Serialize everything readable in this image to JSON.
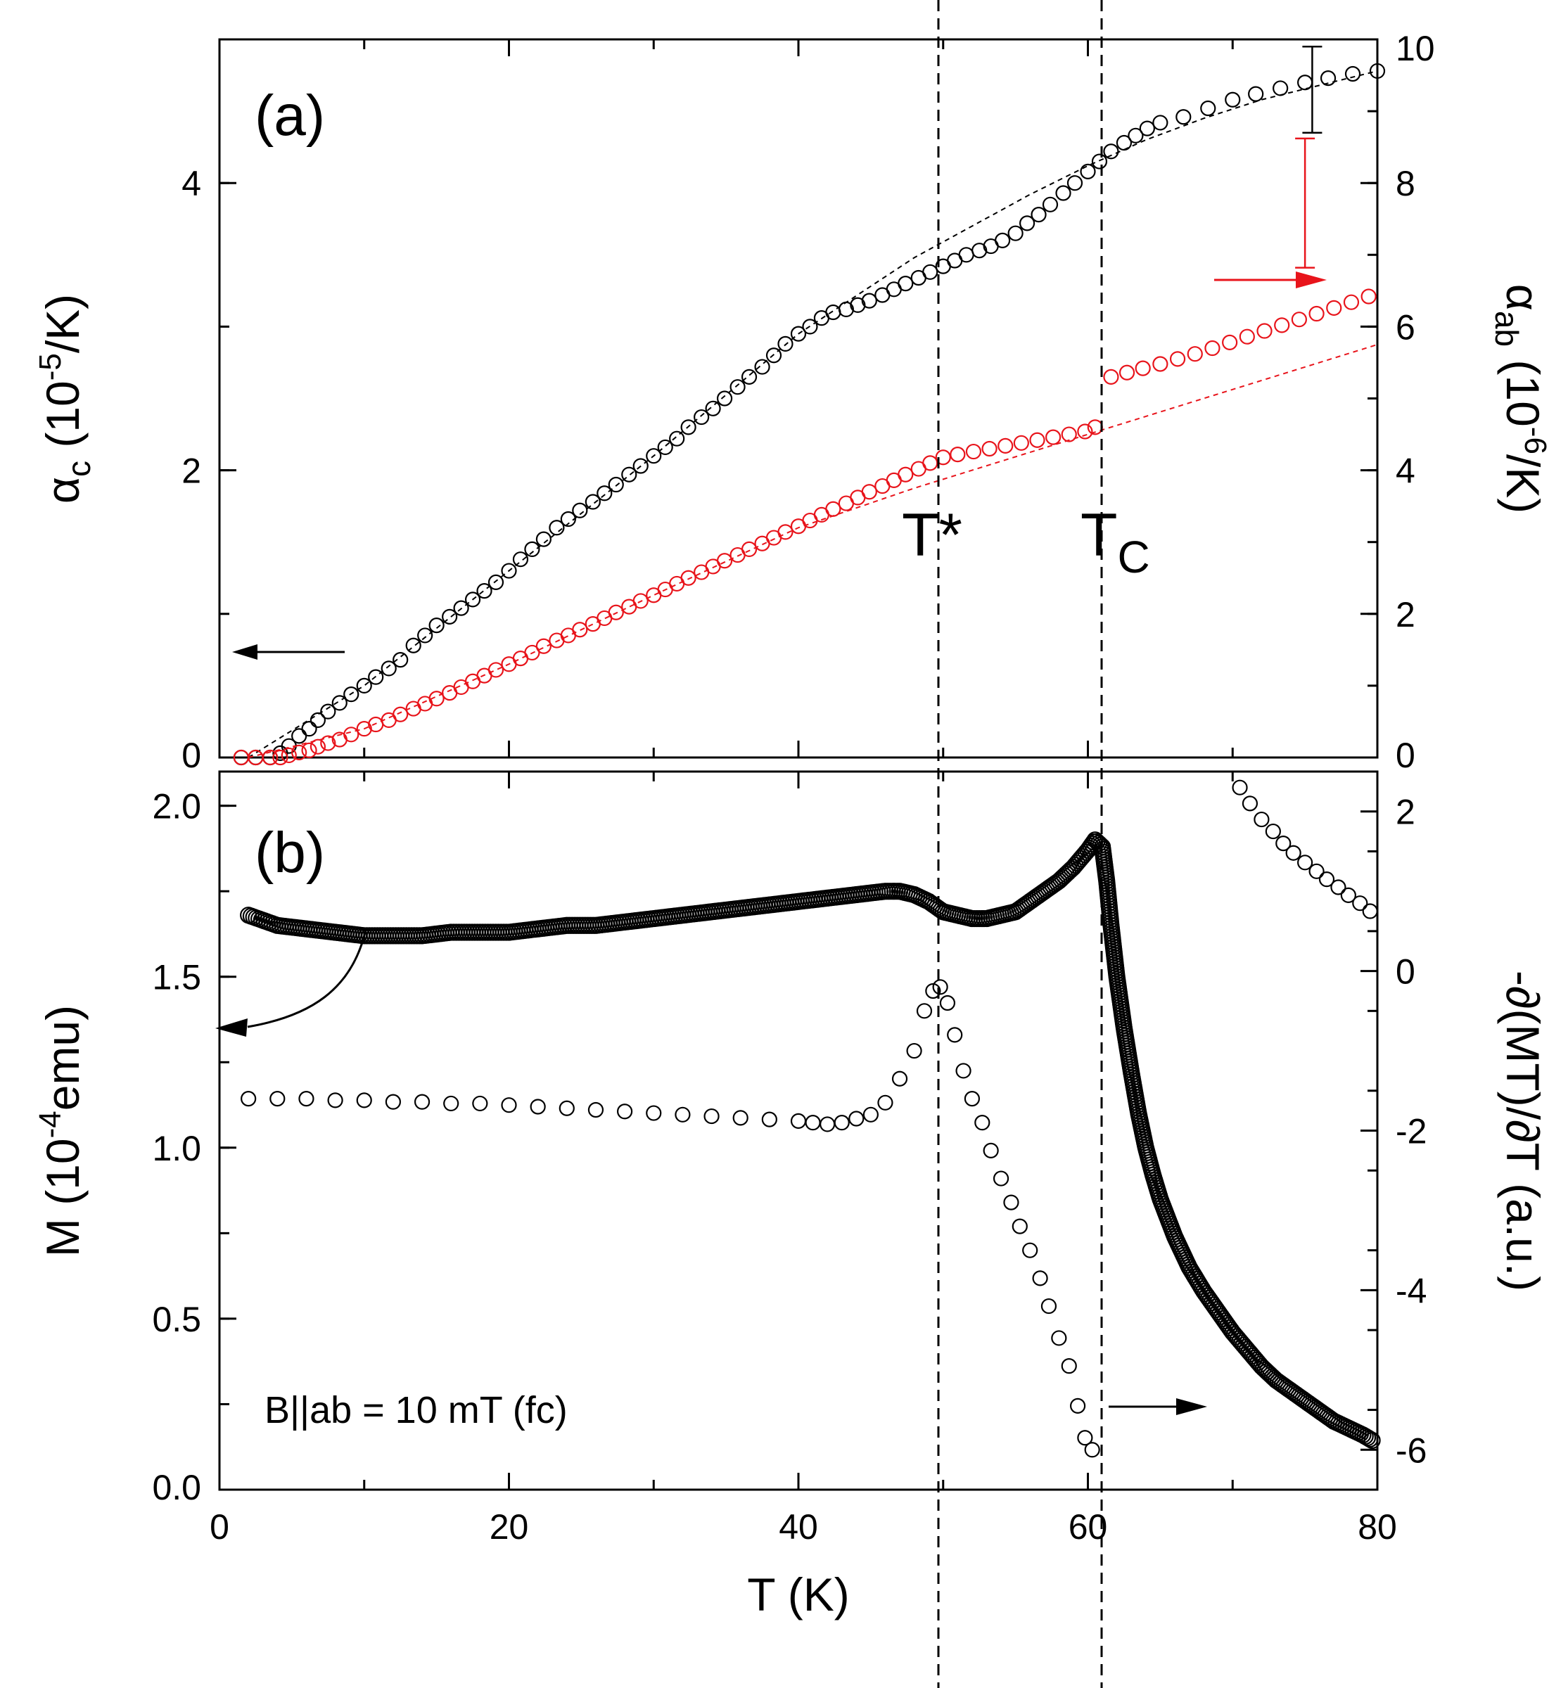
{
  "colors": {
    "black": "#000000",
    "red": "#e8141b"
  },
  "chart_data": [
    {
      "id": "panel-a",
      "type": "scatter",
      "panel_label": "(a)",
      "xlim": [
        0,
        80
      ],
      "ylim_left": [
        0,
        5
      ],
      "ylim_right": [
        0,
        10
      ],
      "ylabel_left": {
        "main": "α",
        "sub": "c",
        "rest": " (10",
        "sup": "-5",
        "end": "/K)"
      },
      "ylabel_right": {
        "main": "α",
        "sub": "ab",
        "rest": " (10",
        "sup": "-6",
        "end": "/K)"
      },
      "left_ticks": [
        "0",
        "2",
        "4"
      ],
      "left_tick_values": [
        0,
        2,
        4
      ],
      "right_ticks": [
        "0",
        "2",
        "4",
        "6",
        "8",
        "10"
      ],
      "right_tick_values": [
        0,
        2,
        4,
        6,
        8,
        10
      ],
      "annotations": {
        "tstar": "T*",
        "tc_main": "T",
        "tc_sub": "C"
      },
      "series": [
        {
          "name": "alpha_c",
          "axis": "left",
          "color": "#000000",
          "x": [
            1.5,
            2.5,
            3.5,
            4.2,
            4.8,
            5.5,
            6.2,
            6.8,
            7.5,
            8.3,
            9.1,
            10,
            10.8,
            11.7,
            12.5,
            13.4,
            14.2,
            15,
            15.9,
            16.7,
            17.5,
            18.3,
            19.1,
            20,
            20.8,
            21.6,
            22.4,
            23.3,
            24.1,
            24.9,
            25.8,
            26.6,
            27.4,
            28.3,
            29.1,
            30,
            30.8,
            31.6,
            32.4,
            33.3,
            34.1,
            34.9,
            35.8,
            36.6,
            37.5,
            38.3,
            39.1,
            40,
            40.8,
            41.6,
            42.4,
            43.3,
            44.1,
            44.9,
            45.8,
            46.6,
            47.4,
            48.3,
            49.1,
            50,
            50.8,
            51.6,
            52.5,
            53.3,
            54.1,
            55,
            55.8,
            56.6,
            57.4,
            58.3,
            59.1,
            60,
            60.8,
            61.6,
            62.5,
            63.3,
            64.1,
            65,
            66.6,
            68.3,
            70,
            71.6,
            73.3,
            75,
            76.6,
            78.3,
            80
          ],
          "y": [
            0,
            0,
            0,
            0.03,
            0.08,
            0.15,
            0.2,
            0.26,
            0.32,
            0.38,
            0.44,
            0.5,
            0.56,
            0.62,
            0.68,
            0.78,
            0.85,
            0.92,
            0.98,
            1.04,
            1.1,
            1.16,
            1.22,
            1.3,
            1.38,
            1.45,
            1.52,
            1.6,
            1.66,
            1.72,
            1.78,
            1.84,
            1.9,
            1.97,
            2.03,
            2.1,
            2.16,
            2.22,
            2.3,
            2.37,
            2.43,
            2.5,
            2.58,
            2.65,
            2.72,
            2.8,
            2.88,
            2.95,
            3.0,
            3.06,
            3.1,
            3.12,
            3.15,
            3.18,
            3.22,
            3.26,
            3.3,
            3.34,
            3.38,
            3.42,
            3.46,
            3.5,
            3.53,
            3.56,
            3.6,
            3.65,
            3.72,
            3.78,
            3.85,
            3.93,
            4.0,
            4.08,
            4.15,
            4.22,
            4.28,
            4.33,
            4.38,
            4.42,
            4.46,
            4.52,
            4.58,
            4.62,
            4.66,
            4.7,
            4.73,
            4.76,
            4.78
          ],
          "trend_x": [
            2,
            10,
            20,
            30,
            40,
            48,
            52,
            56,
            60,
            64,
            68,
            72,
            76,
            80
          ],
          "trend_y": [
            0,
            0.5,
            1.3,
            2.1,
            2.95,
            3.48,
            3.7,
            3.92,
            4.12,
            4.3,
            4.45,
            4.58,
            4.68,
            4.78
          ],
          "error_bar": {
            "x": 75.5,
            "y": 4.65,
            "err": 0.3
          }
        },
        {
          "name": "alpha_ab",
          "axis": "right",
          "color": "#e8141b",
          "x": [
            1.5,
            2.5,
            3.5,
            4.2,
            4.8,
            5.5,
            6.2,
            6.8,
            7.5,
            8.3,
            9.1,
            10,
            10.8,
            11.7,
            12.5,
            13.4,
            14.2,
            15,
            15.9,
            16.7,
            17.5,
            18.3,
            19.1,
            20,
            20.8,
            21.6,
            22.4,
            23.3,
            24.1,
            24.9,
            25.8,
            26.6,
            27.4,
            28.3,
            29.1,
            30,
            30.8,
            31.6,
            32.4,
            33.3,
            34.1,
            34.9,
            35.8,
            36.6,
            37.5,
            38.3,
            39.1,
            40,
            40.8,
            41.6,
            42.4,
            43.3,
            44.1,
            44.9,
            45.8,
            46.6,
            47.4,
            48.3,
            49.1,
            50,
            51,
            52.1,
            53.2,
            54.3,
            55.4,
            56.5,
            57.6,
            58.7,
            59.8,
            60.5,
            61.6,
            62.7,
            63.8,
            65,
            66.2,
            67.4,
            68.6,
            69.8,
            71,
            72.2,
            73.4,
            74.6,
            75.8,
            77,
            78.2,
            79.4
          ],
          "y": [
            0,
            0,
            0,
            0,
            0.03,
            0.07,
            0.1,
            0.15,
            0.2,
            0.25,
            0.32,
            0.4,
            0.46,
            0.52,
            0.6,
            0.68,
            0.75,
            0.82,
            0.9,
            0.98,
            1.06,
            1.14,
            1.22,
            1.3,
            1.38,
            1.46,
            1.55,
            1.63,
            1.7,
            1.78,
            1.86,
            1.94,
            2.02,
            2.1,
            2.18,
            2.26,
            2.34,
            2.42,
            2.5,
            2.58,
            2.66,
            2.74,
            2.82,
            2.9,
            2.98,
            3.06,
            3.14,
            3.22,
            3.3,
            3.38,
            3.46,
            3.54,
            3.62,
            3.7,
            3.78,
            3.86,
            3.94,
            4.02,
            4.1,
            4.18,
            4.22,
            4.26,
            4.3,
            4.34,
            4.38,
            4.42,
            4.46,
            4.5,
            4.54,
            4.6,
            5.3,
            5.36,
            5.42,
            5.48,
            5.55,
            5.62,
            5.7,
            5.78,
            5.86,
            5.94,
            6.02,
            6.1,
            6.18,
            6.26,
            6.34,
            6.42
          ],
          "trend_x": [
            2,
            10,
            20,
            30,
            40,
            48,
            52,
            56,
            60,
            64,
            68,
            72,
            76,
            80
          ],
          "trend_y": [
            0,
            0.4,
            1.3,
            2.26,
            3.2,
            3.75,
            4.0,
            4.25,
            4.5,
            4.75,
            5.0,
            5.25,
            5.5,
            5.75
          ],
          "error_bar": {
            "x": 75,
            "y": 7.72,
            "err": 0.9
          }
        }
      ]
    },
    {
      "id": "panel-b",
      "type": "scatter",
      "panel_label": "(b)",
      "xlim": [
        0,
        80
      ],
      "xlabel": "T (K)",
      "x_ticks": [
        "0",
        "20",
        "40",
        "60",
        "80"
      ],
      "x_tick_values": [
        0,
        20,
        40,
        60,
        80
      ],
      "ylim_left": [
        0,
        2.1
      ],
      "ylim_right": [
        -6.5,
        2.5
      ],
      "ylabel_left": {
        "main": "M (10",
        "sup": "-4",
        "end": "emu)"
      },
      "ylabel_right": "-∂(MT)/∂T (a.u.)",
      "left_ticks": [
        "0.0",
        "0.5",
        "1.0",
        "1.5",
        "2.0"
      ],
      "left_tick_values": [
        0,
        0.5,
        1.0,
        1.5,
        2.0
      ],
      "right_ticks": [
        "-6",
        "-4",
        "-2",
        "0",
        "2"
      ],
      "right_tick_values": [
        -6,
        -4,
        -2,
        0,
        2
      ],
      "field_note": "B||ab = 10 mT (fc)",
      "series": [
        {
          "name": "M",
          "axis": "left",
          "color": "#000000",
          "x": [
            2,
            4,
            6,
            8,
            10,
            12,
            14,
            16,
            18,
            20,
            22,
            24,
            26,
            28,
            30,
            32,
            34,
            36,
            38,
            40,
            42,
            44,
            46,
            47,
            48,
            49,
            50,
            51,
            52,
            53,
            54,
            55,
            56,
            57,
            58,
            59,
            60,
            60.5,
            61,
            61.3,
            61.6,
            62,
            62.5,
            63,
            63.5,
            64,
            64.5,
            65,
            66,
            67,
            68,
            69,
            70,
            71,
            72,
            73,
            74,
            75,
            76,
            77,
            78,
            79,
            79.8
          ],
          "y": [
            1.68,
            1.65,
            1.64,
            1.63,
            1.62,
            1.62,
            1.62,
            1.63,
            1.63,
            1.63,
            1.64,
            1.65,
            1.65,
            1.66,
            1.67,
            1.68,
            1.69,
            1.7,
            1.71,
            1.72,
            1.73,
            1.74,
            1.75,
            1.75,
            1.74,
            1.72,
            1.69,
            1.68,
            1.67,
            1.67,
            1.68,
            1.69,
            1.72,
            1.75,
            1.78,
            1.82,
            1.87,
            1.9,
            1.88,
            1.78,
            1.65,
            1.5,
            1.35,
            1.22,
            1.1,
            1.0,
            0.92,
            0.85,
            0.74,
            0.65,
            0.58,
            0.52,
            0.46,
            0.41,
            0.36,
            0.32,
            0.29,
            0.26,
            0.23,
            0.2,
            0.18,
            0.16,
            0.14
          ]
        },
        {
          "name": "dMT_dT",
          "axis": "right",
          "color": "#000000",
          "x": [
            2,
            4,
            6,
            8,
            10,
            12,
            14,
            16,
            18,
            20,
            22,
            24,
            26,
            28,
            30,
            32,
            34,
            36,
            38,
            40,
            41,
            42,
            43,
            44,
            45,
            46,
            47,
            48,
            48.7,
            49.3,
            49.8,
            50.3,
            50.8,
            51.4,
            52,
            52.7,
            53.3,
            54,
            54.7,
            55.3,
            56,
            56.7,
            57.3,
            58,
            58.7,
            59.3,
            59.8,
            60.3,
            70.5,
            71.2,
            72,
            72.8,
            73.5,
            74.2,
            75,
            75.8,
            76.5,
            77.3,
            78,
            78.8,
            79.5
          ],
          "y": [
            -1.6,
            -1.6,
            -1.6,
            -1.62,
            -1.62,
            -1.64,
            -1.64,
            -1.66,
            -1.66,
            -1.68,
            -1.7,
            -1.72,
            -1.74,
            -1.76,
            -1.78,
            -1.8,
            -1.82,
            -1.84,
            -1.86,
            -1.88,
            -1.9,
            -1.92,
            -1.9,
            -1.85,
            -1.8,
            -1.65,
            -1.35,
            -1.0,
            -0.5,
            -0.25,
            -0.2,
            -0.4,
            -0.8,
            -1.25,
            -1.6,
            -1.9,
            -2.25,
            -2.6,
            -2.9,
            -3.2,
            -3.5,
            -3.85,
            -4.2,
            -4.6,
            -4.95,
            -5.45,
            -5.85,
            -6.0,
            2.3,
            2.1,
            1.9,
            1.75,
            1.6,
            1.48,
            1.36,
            1.25,
            1.15,
            1.05,
            0.95,
            0.85,
            0.75
          ]
        }
      ]
    }
  ]
}
